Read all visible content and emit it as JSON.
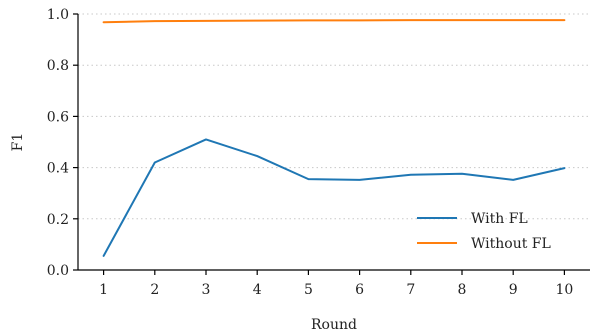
{
  "chart_data": {
    "type": "line",
    "title": "",
    "xlabel": "Round",
    "ylabel": "F1",
    "x": [
      1,
      2,
      3,
      4,
      5,
      6,
      7,
      8,
      9,
      10
    ],
    "xlim": [
      0.5,
      10.5
    ],
    "ylim": [
      0.0,
      1.0
    ],
    "yticks": [
      0.0,
      0.2,
      0.4,
      0.6,
      0.8,
      1.0
    ],
    "ytick_labels": [
      "0.0",
      "0.2",
      "0.4",
      "0.6",
      "0.8",
      "1.0"
    ],
    "xtick_labels": [
      "1",
      "2",
      "3",
      "4",
      "5",
      "6",
      "7",
      "8",
      "9",
      "10"
    ],
    "grid": "horizontal dotted",
    "legend_position": "lower-right",
    "series": [
      {
        "name": "With FL",
        "color": "#1f77b4",
        "values": [
          0.055,
          0.42,
          0.51,
          0.445,
          0.355,
          0.352,
          0.372,
          0.376,
          0.352,
          0.398
        ]
      },
      {
        "name": "Without FL",
        "color": "#ff7f0e",
        "values": [
          0.968,
          0.972,
          0.973,
          0.974,
          0.975,
          0.975,
          0.976,
          0.976,
          0.976,
          0.976
        ]
      }
    ]
  }
}
